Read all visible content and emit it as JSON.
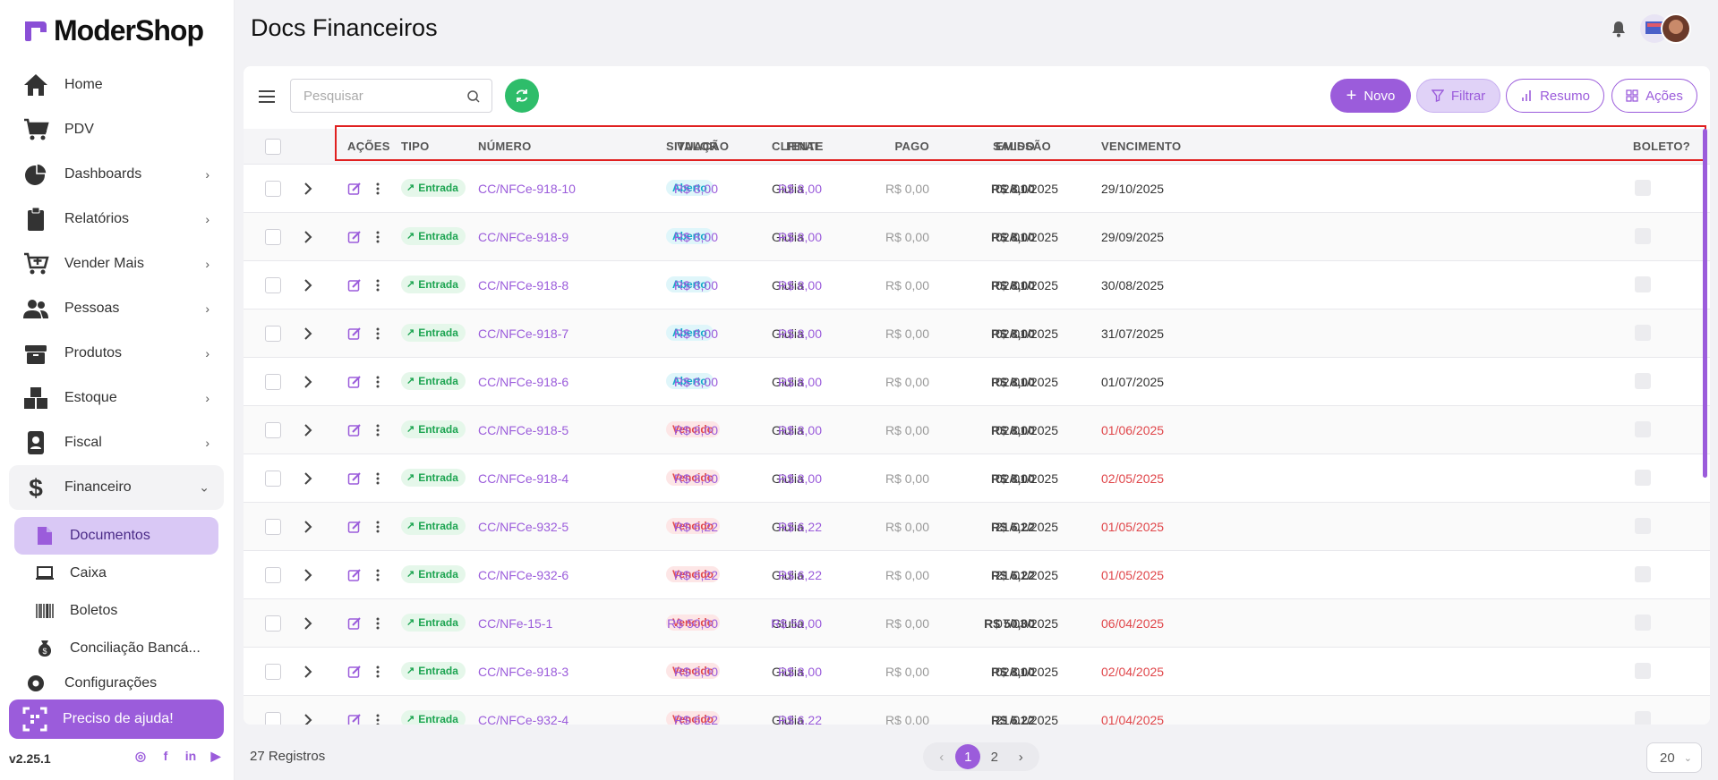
{
  "brand": {
    "name": "ModerShop",
    "accent": "#9b5cdb"
  },
  "sidebar": {
    "items": [
      {
        "label": "Home",
        "icon": "home-icon",
        "chevron": false
      },
      {
        "label": "PDV",
        "icon": "cart-icon",
        "chevron": false
      },
      {
        "label": "Dashboards",
        "icon": "pie-chart-icon",
        "chevron": true
      },
      {
        "label": "Relatórios",
        "icon": "clipboard-icon",
        "chevron": true
      },
      {
        "label": "Vender Mais",
        "icon": "cart-plus-icon",
        "chevron": true
      },
      {
        "label": "Pessoas",
        "icon": "people-icon",
        "chevron": true
      },
      {
        "label": "Produtos",
        "icon": "box-icon",
        "chevron": true
      },
      {
        "label": "Estoque",
        "icon": "boxes-icon",
        "chevron": true
      },
      {
        "label": "Fiscal",
        "icon": "id-badge-icon",
        "chevron": true
      },
      {
        "label": "Financeiro",
        "icon": "dollar-icon",
        "chevron": true,
        "open": true
      }
    ],
    "subitems": [
      {
        "label": "Documentos",
        "icon": "document-icon",
        "active": true
      },
      {
        "label": "Caixa",
        "icon": "laptop-icon"
      },
      {
        "label": "Boletos",
        "icon": "barcode-icon"
      },
      {
        "label": "Conciliação Bancá...",
        "icon": "money-bag-icon"
      }
    ],
    "config_label": "Configurações",
    "help_label": "Preciso de ajuda!",
    "version": "v2.25.1"
  },
  "header": {
    "title": "Docs Financeiros"
  },
  "toolbar": {
    "search_placeholder": "Pesquisar",
    "novo_label": "Novo",
    "filtrar_label": "Filtrar",
    "resumo_label": "Resumo",
    "acoes_label": "Ações"
  },
  "table": {
    "columns": {
      "acoes": "AÇÕES",
      "tipo": "TIPO",
      "numero": "NÚMERO",
      "situacao": "SITUAÇÃO",
      "cliente": "CLIENTE",
      "emissao": "EMISSÃO",
      "vencimento": "VENCIMENTO",
      "valor": "VALOR",
      "final": "FINAL",
      "pago": "PAGO",
      "saldo": "SALDO",
      "boleto": "BOLETO?"
    },
    "rows": [
      {
        "tipo": "Entrada",
        "numero": "CC/NFCe-918-10",
        "situacao": "Aberto",
        "cliente": "Giulia",
        "emissao": "02/01/2025",
        "vencimento": "29/10/2025",
        "valor": "R$ 8,00",
        "final": "R$ 8,00",
        "pago": "R$ 0,00",
        "saldo": "R$ 8,00"
      },
      {
        "tipo": "Entrada",
        "numero": "CC/NFCe-918-9",
        "situacao": "Aberto",
        "cliente": "Giulia",
        "emissao": "02/01/2025",
        "vencimento": "29/09/2025",
        "valor": "R$ 8,00",
        "final": "R$ 8,00",
        "pago": "R$ 0,00",
        "saldo": "R$ 8,00"
      },
      {
        "tipo": "Entrada",
        "numero": "CC/NFCe-918-8",
        "situacao": "Aberto",
        "cliente": "Giulia",
        "emissao": "02/01/2025",
        "vencimento": "30/08/2025",
        "valor": "R$ 8,00",
        "final": "R$ 8,00",
        "pago": "R$ 0,00",
        "saldo": "R$ 8,00"
      },
      {
        "tipo": "Entrada",
        "numero": "CC/NFCe-918-7",
        "situacao": "Aberto",
        "cliente": "Giulia",
        "emissao": "02/01/2025",
        "vencimento": "31/07/2025",
        "valor": "R$ 8,00",
        "final": "R$ 8,00",
        "pago": "R$ 0,00",
        "saldo": "R$ 8,00"
      },
      {
        "tipo": "Entrada",
        "numero": "CC/NFCe-918-6",
        "situacao": "Aberto",
        "cliente": "Giulia",
        "emissao": "02/01/2025",
        "vencimento": "01/07/2025",
        "valor": "R$ 8,00",
        "final": "R$ 8,00",
        "pago": "R$ 0,00",
        "saldo": "R$ 8,00"
      },
      {
        "tipo": "Entrada",
        "numero": "CC/NFCe-918-5",
        "situacao": "Vencido",
        "cliente": "Giulia",
        "emissao": "02/01/2025",
        "vencimento": "01/06/2025",
        "valor": "R$ 8,00",
        "final": "R$ 8,00",
        "pago": "R$ 0,00",
        "saldo": "R$ 8,00"
      },
      {
        "tipo": "Entrada",
        "numero": "CC/NFCe-918-4",
        "situacao": "Vencido",
        "cliente": "Giulia",
        "emissao": "02/01/2025",
        "vencimento": "02/05/2025",
        "valor": "R$ 8,00",
        "final": "R$ 8,00",
        "pago": "R$ 0,00",
        "saldo": "R$ 8,00"
      },
      {
        "tipo": "Entrada",
        "numero": "CC/NFCe-932-5",
        "situacao": "Vencido",
        "cliente": "Giulia",
        "emissao": "21/01/2025",
        "vencimento": "01/05/2025",
        "valor": "R$ 6,22",
        "final": "R$ 6,22",
        "pago": "R$ 0,00",
        "saldo": "R$ 6,22"
      },
      {
        "tipo": "Entrada",
        "numero": "CC/NFCe-932-6",
        "situacao": "Vencido",
        "cliente": "Giulia",
        "emissao": "21/01/2025",
        "vencimento": "01/05/2025",
        "valor": "R$ 6,22",
        "final": "R$ 6,22",
        "pago": "R$ 0,00",
        "saldo": "R$ 6,22"
      },
      {
        "tipo": "Entrada",
        "numero": "CC/NFe-15-1",
        "situacao": "Vencido",
        "cliente": "Giulia",
        "emissao": "07/03/2025",
        "vencimento": "06/04/2025",
        "valor": "R$ 50,00",
        "final": "R$ 50,00",
        "pago": "R$ 0,00",
        "saldo": "R$ 50,00"
      },
      {
        "tipo": "Entrada",
        "numero": "CC/NFCe-918-3",
        "situacao": "Vencido",
        "cliente": "Giulia",
        "emissao": "02/01/2025",
        "vencimento": "02/04/2025",
        "valor": "R$ 8,00",
        "final": "R$ 8,00",
        "pago": "R$ 0,00",
        "saldo": "R$ 8,00"
      },
      {
        "tipo": "Entrada",
        "numero": "CC/NFCe-932-4",
        "situacao": "Vencido",
        "cliente": "Giulia",
        "emissao": "21/01/2025",
        "vencimento": "01/04/2025",
        "valor": "R$ 6,22",
        "final": "R$ 6,22",
        "pago": "R$ 0,00",
        "saldo": "R$ 6,22"
      }
    ]
  },
  "footer": {
    "records": "27 Registros",
    "pages": [
      "1",
      "2"
    ],
    "current_page": "1",
    "per_page": "20"
  }
}
